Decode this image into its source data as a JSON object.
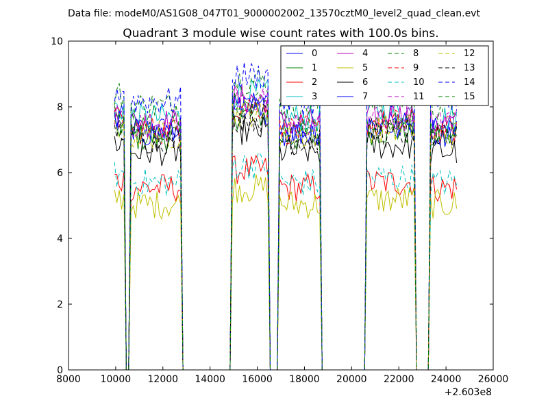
{
  "chart_data": {
    "type": "line",
    "suptitle": "Data file: modeM0/AS1G08_047T01_9000002002_13570cztM0_level2_quad_clean.evt",
    "title": "Quadrant 3 module wise count rates with 100.0s bins.",
    "xlabel": "",
    "ylabel": "",
    "x_offset_label": "+2.603e8",
    "xlim": [
      8000,
      26000
    ],
    "ylim": [
      0,
      10
    ],
    "x_ticks": [
      "8000",
      "10000",
      "12000",
      "14000",
      "16000",
      "18000",
      "20000",
      "22000",
      "24000",
      "26000"
    ],
    "y_ticks": [
      "0",
      "2",
      "4",
      "6",
      "8",
      "10"
    ],
    "grid": false,
    "legend_location": "top-right",
    "segments": [
      {
        "start": 9950,
        "end": 10350,
        "level": 7.6
      },
      {
        "start": 10450,
        "end": 10550,
        "level": 0.0
      },
      {
        "start": 10650,
        "end": 12750,
        "level": 7.3
      },
      {
        "start": 14950,
        "end": 16450,
        "level": 8.0
      },
      {
        "start": 16950,
        "end": 18650,
        "level": 7.3
      },
      {
        "start": 20650,
        "end": 22650,
        "level": 7.5
      },
      {
        "start": 23350,
        "end": 24450,
        "level": 7.3
      }
    ],
    "gap_level": 0.0,
    "series": [
      {
        "name": "0",
        "color": "#0000ff",
        "dash": "solid",
        "level_factor": 1.0
      },
      {
        "name": "1",
        "color": "#008000",
        "dash": "solid",
        "level_factor": 0.97
      },
      {
        "name": "2",
        "color": "#ff0000",
        "dash": "solid",
        "level_factor": 0.76
      },
      {
        "name": "3",
        "color": "#00bfbf",
        "dash": "solid",
        "level_factor": 1.05
      },
      {
        "name": "4",
        "color": "#bf00bf",
        "dash": "solid",
        "level_factor": 1.03
      },
      {
        "name": "5",
        "color": "#bfbf00",
        "dash": "solid",
        "level_factor": 0.69
      },
      {
        "name": "6",
        "color": "#000000",
        "dash": "solid",
        "level_factor": 0.91
      },
      {
        "name": "7",
        "color": "#0000ff",
        "dash": "solid",
        "level_factor": 0.99
      },
      {
        "name": "8",
        "color": "#008000",
        "dash": "dashed",
        "level_factor": 1.1
      },
      {
        "name": "9",
        "color": "#ff0000",
        "dash": "dashed",
        "level_factor": 1.0
      },
      {
        "name": "10",
        "color": "#00bfbf",
        "dash": "dashed",
        "level_factor": 0.78
      },
      {
        "name": "11",
        "color": "#bf00bf",
        "dash": "dashed",
        "level_factor": 1.02
      },
      {
        "name": "12",
        "color": "#bfbf00",
        "dash": "dashed",
        "level_factor": 0.98
      },
      {
        "name": "13",
        "color": "#000000",
        "dash": "dashed",
        "level_factor": 0.96
      },
      {
        "name": "14",
        "color": "#0000ff",
        "dash": "dashed",
        "level_factor": 1.12
      },
      {
        "name": "15",
        "color": "#008000",
        "dash": "dashed",
        "level_factor": 1.0
      }
    ]
  }
}
